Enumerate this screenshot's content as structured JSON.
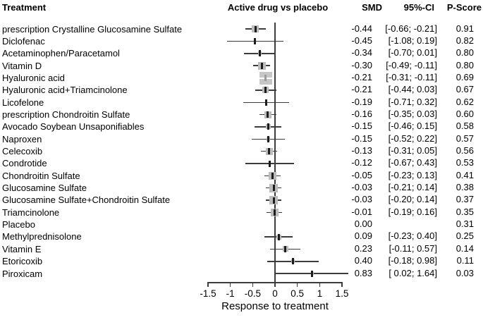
{
  "header": {
    "treatment": "Treatment",
    "plot": "Active drug vs placebo",
    "smd": "SMD",
    "ci": "95%-CI",
    "pscore": "P-Score"
  },
  "colors": {
    "text": "#000000",
    "line": "#3c3c3c",
    "marker_square": "#bcbcbc",
    "marker_square_large": "#c6c6c6",
    "marker_tick": "#1c1c1c",
    "background": "#ffffff"
  },
  "chart_data": {
    "type": "forest",
    "title": "Active drug vs placebo",
    "xlabel": "Response to treatment",
    "xlim": [
      -1.5,
      1.5
    ],
    "reference_line": 0,
    "axis_ticks": {
      "values": [
        -1.5,
        -1,
        -0.5,
        0,
        0.5,
        1,
        1.5
      ],
      "labels": [
        "-1.5",
        "-1",
        "-0.5",
        "0",
        "0.5",
        "1",
        "1.5"
      ]
    },
    "rows": [
      {
        "treatment": "prescription Crystalline Glucosamine Sulfate",
        "smd": -0.44,
        "ci_low": -0.66,
        "ci_high": -0.21,
        "pscore": 0.91,
        "smd_text": "-0.44",
        "ci_text": "[-0.66; -0.21]",
        "pscore_text": "0.91",
        "marker_size": 10,
        "is_reference": false
      },
      {
        "treatment": "Diclofenac",
        "smd": -0.45,
        "ci_low": -1.08,
        "ci_high": 0.19,
        "pscore": 0.82,
        "smd_text": "-0.45",
        "ci_text": "[-1.08; 0.19]",
        "pscore_text": "0.82",
        "marker_size": 0,
        "is_reference": false
      },
      {
        "treatment": "Acetaminophen/Paracetamol",
        "smd": -0.34,
        "ci_low": -0.7,
        "ci_high": 0.01,
        "pscore": 0.8,
        "smd_text": "-0.34",
        "ci_text": "[-0.70; 0.01]",
        "pscore_text": "0.80",
        "marker_size": 5,
        "is_reference": false
      },
      {
        "treatment": "Vitamin D",
        "smd": -0.3,
        "ci_low": -0.49,
        "ci_high": -0.11,
        "pscore": 0.8,
        "smd_text": "-0.30",
        "ci_text": "[-0.49; -0.11]",
        "pscore_text": "0.80",
        "marker_size": 11,
        "is_reference": false
      },
      {
        "treatment": "Hyaluronic acid",
        "smd": -0.21,
        "ci_low": -0.31,
        "ci_high": -0.11,
        "pscore": 0.69,
        "smd_text": "-0.21",
        "ci_text": "[-0.31; -0.11]",
        "pscore_text": "0.69",
        "marker_size": 18,
        "is_reference": false
      },
      {
        "treatment": "Hyaluronic acid+Triamcinolone",
        "smd": -0.21,
        "ci_low": -0.44,
        "ci_high": 0.03,
        "pscore": 0.67,
        "smd_text": "-0.21",
        "ci_text": "[-0.44; 0.03]",
        "pscore_text": "0.67",
        "marker_size": 9,
        "is_reference": false
      },
      {
        "treatment": "Licofelone",
        "smd": -0.19,
        "ci_low": -0.71,
        "ci_high": 0.32,
        "pscore": 0.62,
        "smd_text": "-0.19",
        "ci_text": "[-0.71; 0.32]",
        "pscore_text": "0.62",
        "marker_size": 0,
        "is_reference": false
      },
      {
        "treatment": "prescription Chondroitin Sulfate",
        "smd": -0.16,
        "ci_low": -0.35,
        "ci_high": 0.03,
        "pscore": 0.6,
        "smd_text": "-0.16",
        "ci_text": "[-0.35; 0.03]",
        "pscore_text": "0.60",
        "marker_size": 10,
        "is_reference": false
      },
      {
        "treatment": "Avocado Soybean Unsaponifiables",
        "smd": -0.15,
        "ci_low": -0.46,
        "ci_high": 0.15,
        "pscore": 0.58,
        "smd_text": "-0.15",
        "ci_text": "[-0.46; 0.15]",
        "pscore_text": "0.58",
        "marker_size": 7,
        "is_reference": false
      },
      {
        "treatment": "Naproxen",
        "smd": -0.15,
        "ci_low": -0.52,
        "ci_high": 0.22,
        "pscore": 0.57,
        "smd_text": "-0.15",
        "ci_text": "[-0.52; 0.22]",
        "pscore_text": "0.57",
        "marker_size": 5,
        "is_reference": false
      },
      {
        "treatment": "Celecoxib",
        "smd": -0.13,
        "ci_low": -0.31,
        "ci_high": 0.05,
        "pscore": 0.56,
        "smd_text": "-0.13",
        "ci_text": "[-0.31; 0.05]",
        "pscore_text": "0.56",
        "marker_size": 10,
        "is_reference": false
      },
      {
        "treatment": "Condrotide",
        "smd": -0.12,
        "ci_low": -0.67,
        "ci_high": 0.43,
        "pscore": 0.53,
        "smd_text": "-0.12",
        "ci_text": "[-0.67; 0.43]",
        "pscore_text": "0.53",
        "marker_size": 0,
        "is_reference": false
      },
      {
        "treatment": "Chondroitin Sulfate",
        "smd": -0.05,
        "ci_low": -0.23,
        "ci_high": 0.13,
        "pscore": 0.41,
        "smd_text": "-0.05",
        "ci_text": "[-0.23; 0.13]",
        "pscore_text": "0.41",
        "marker_size": 11,
        "is_reference": false
      },
      {
        "treatment": "Glucosamine Sulfate",
        "smd": -0.03,
        "ci_low": -0.21,
        "ci_high": 0.14,
        "pscore": 0.38,
        "smd_text": "-0.03",
        "ci_text": "[-0.21; 0.14]",
        "pscore_text": "0.38",
        "marker_size": 12,
        "is_reference": false
      },
      {
        "treatment": "Glucosamine Sulfate+Chondroitin Sulfate",
        "smd": -0.03,
        "ci_low": -0.2,
        "ci_high": 0.14,
        "pscore": 0.37,
        "smd_text": "-0.03",
        "ci_text": "[-0.20; 0.14]",
        "pscore_text": "0.37",
        "marker_size": 12,
        "is_reference": false
      },
      {
        "treatment": "Triamcinolone",
        "smd": -0.01,
        "ci_low": -0.19,
        "ci_high": 0.16,
        "pscore": 0.35,
        "smd_text": "-0.01",
        "ci_text": "[-0.19; 0.16]",
        "pscore_text": "0.35",
        "marker_size": 11,
        "is_reference": false
      },
      {
        "treatment": "Placebo",
        "smd": 0.0,
        "ci_low": null,
        "ci_high": null,
        "pscore": 0.31,
        "smd_text": "0.00",
        "ci_text": "",
        "pscore_text": "0.31",
        "marker_size": 0,
        "is_reference": true
      },
      {
        "treatment": "Methylprednisolone",
        "smd": 0.09,
        "ci_low": -0.23,
        "ci_high": 0.4,
        "pscore": 0.25,
        "smd_text": "0.09",
        "ci_text": "[-0.23; 0.40]",
        "pscore_text": "0.25",
        "marker_size": 7,
        "is_reference": false
      },
      {
        "treatment": "Vitamin E",
        "smd": 0.23,
        "ci_low": -0.11,
        "ci_high": 0.57,
        "pscore": 0.14,
        "smd_text": "0.23",
        "ci_text": "[-0.11; 0.57]",
        "pscore_text": "0.14",
        "marker_size": 8,
        "is_reference": false
      },
      {
        "treatment": "Etoricoxib",
        "smd": 0.4,
        "ci_low": -0.18,
        "ci_high": 0.98,
        "pscore": 0.11,
        "smd_text": "0.40",
        "ci_text": "[-0.18; 0.98]",
        "pscore_text": "0.11",
        "marker_size": 5,
        "is_reference": false
      },
      {
        "treatment": "Piroxicam",
        "smd": 0.83,
        "ci_low": 0.02,
        "ci_high": 1.64,
        "pscore": 0.03,
        "smd_text": "0.83",
        "ci_text": "[ 0.02; 1.64]",
        "pscore_text": "0.03",
        "marker_size": 4,
        "is_reference": false
      }
    ]
  }
}
